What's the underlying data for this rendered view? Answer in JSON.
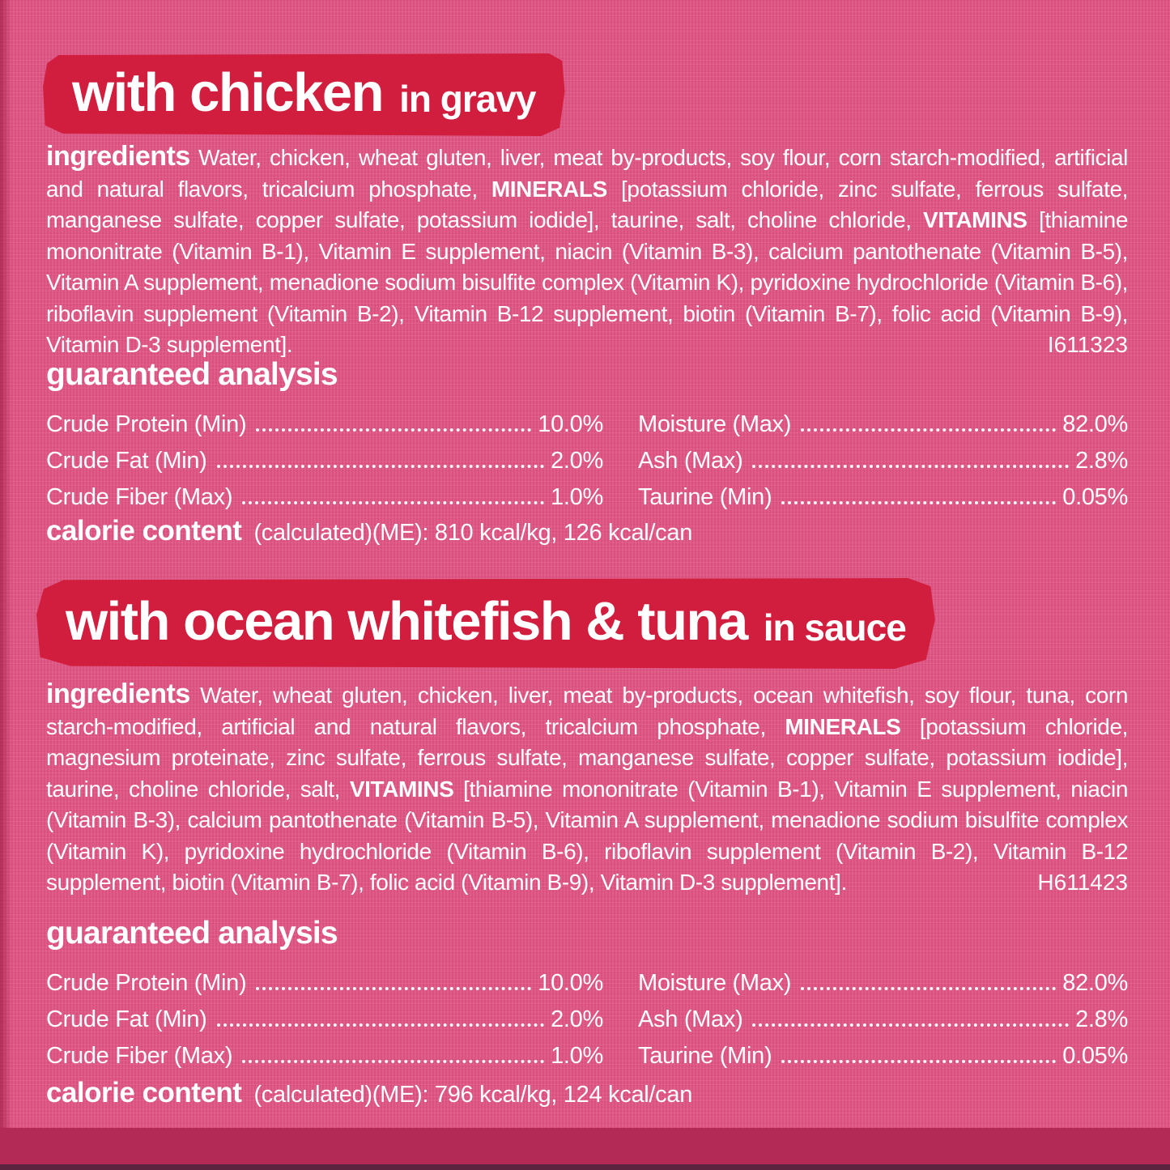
{
  "colors": {
    "background_pink": "#dd5180",
    "banner_red": "#d11e3e",
    "text_white": "#ffffff",
    "bottom_band": "#b22a55",
    "bottom_edge": "#5d2440"
  },
  "products": [
    {
      "banner": {
        "title": "with chicken",
        "subtitle": "in gravy"
      },
      "ingredients": {
        "label": "ingredients",
        "s1": " Water, chicken, wheat gluten, liver, meat by-products, soy flour, corn starch-modified, artificial and natural flavors, tricalcium phosphate, ",
        "minerals_label": "MINERALS",
        "s2": " [potassium chloride, zinc sulfate, ferrous sulfate, manganese sulfate, copper sulfate, potassium iodide], taurine, salt, choline chloride, ",
        "vitamins_label": "VITAMINS",
        "s3": " [thiamine mononitrate (Vitamin B-1), Vitamin E supplement, niacin (Vitamin B-3), calcium pantothenate (Vitamin B-5), Vitamin A supplement, menadione sodium bisulfite complex (Vitamin K), pyridoxine hydrochloride (Vitamin B-6), riboflavin supplement (Vitamin B-2), Vitamin B-12 supplement, biotin (Vitamin B-7), folic acid (Vitamin B-9), Vitamin D-3 supplement].",
        "code": "I611323"
      },
      "analysis": {
        "heading": "guaranteed analysis",
        "left": [
          {
            "label": "Crude Protein (Min)",
            "value": "10.0%"
          },
          {
            "label": "Crude Fat (Min)",
            "value": "2.0%"
          },
          {
            "label": "Crude Fiber (Max)",
            "value": "1.0%"
          }
        ],
        "right": [
          {
            "label": "Moisture (Max)",
            "value": "82.0%"
          },
          {
            "label": "Ash (Max)",
            "value": "2.8%"
          },
          {
            "label": "Taurine (Min)",
            "value": "0.05%"
          }
        ]
      },
      "calories": {
        "heading": "calorie content",
        "text": "(calculated)(ME): 810 kcal/kg, 126 kcal/can"
      }
    },
    {
      "banner": {
        "title": "with ocean whitefish & tuna",
        "subtitle": "in sauce"
      },
      "ingredients": {
        "label": "ingredients",
        "s1": " Water, wheat gluten, chicken, liver, meat by-products, ocean whitefish, soy flour, tuna, corn starch-modified, artificial and natural flavors, tricalcium phosphate, ",
        "minerals_label": "MINERALS",
        "s2": " [potassium chloride, magnesium proteinate, zinc sulfate, ferrous sulfate, manganese sulfate, copper sulfate, potassium iodide], taurine, choline chloride, salt, ",
        "vitamins_label": "VITAMINS",
        "s3": " [thiamine mononitrate (Vitamin B-1), Vitamin E supplement, niacin (Vitamin B-3), calcium pantothenate (Vitamin B-5), Vitamin A supplement, menadione sodium bisulfite complex (Vitamin K), pyridoxine hydrochloride (Vitamin B-6), riboflavin supplement (Vitamin B-2), Vitamin B-12 supplement, biotin (Vitamin B-7), folic acid (Vitamin B-9), Vitamin D-3 supplement].",
        "code": "H611423"
      },
      "analysis": {
        "heading": "guaranteed analysis",
        "left": [
          {
            "label": "Crude Protein (Min)",
            "value": "10.0%"
          },
          {
            "label": "Crude Fat (Min)",
            "value": "2.0%"
          },
          {
            "label": "Crude Fiber (Max)",
            "value": "1.0%"
          }
        ],
        "right": [
          {
            "label": "Moisture (Max)",
            "value": "82.0%"
          },
          {
            "label": "Ash (Max)",
            "value": "2.8%"
          },
          {
            "label": "Taurine (Min)",
            "value": "0.05%"
          }
        ]
      },
      "calories": {
        "heading": "calorie content",
        "text": "(calculated)(ME): 796 kcal/kg, 124 kcal/can"
      }
    }
  ]
}
